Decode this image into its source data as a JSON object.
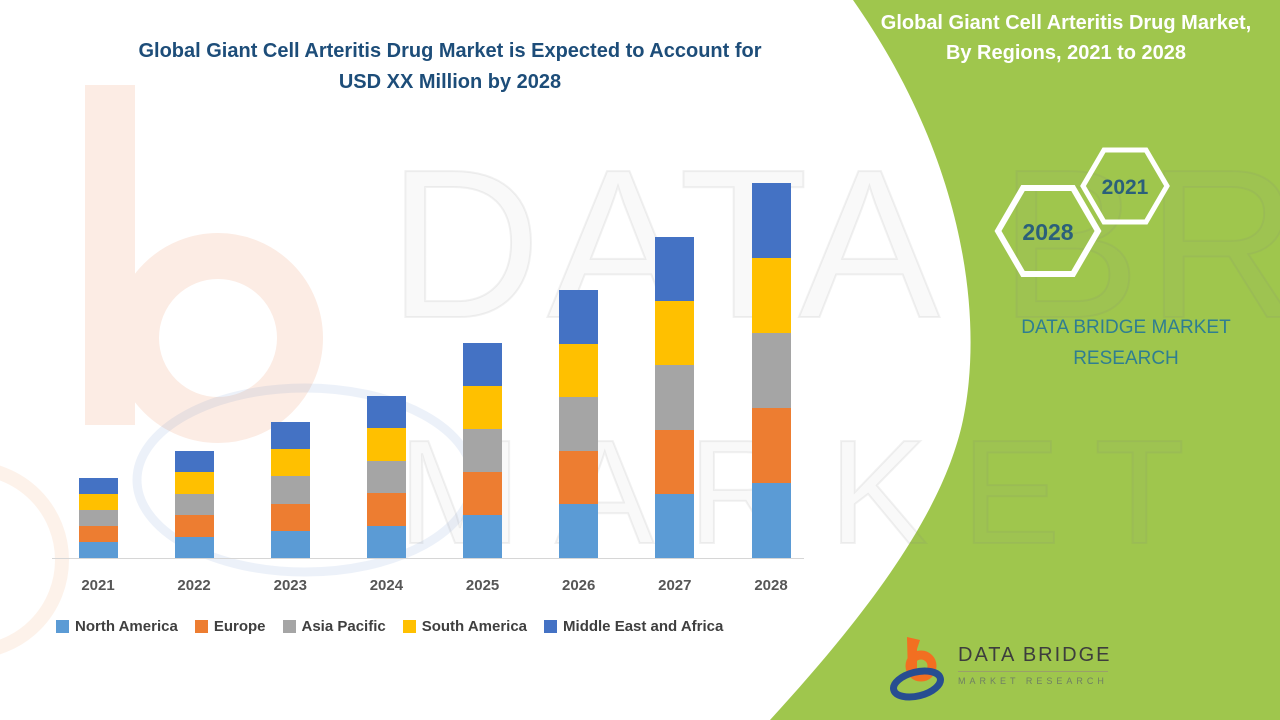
{
  "header": {
    "title_line1": "Global Giant Cell Arteritis Drug Market is Expected to Account for",
    "title_line2": "USD XX Million by 2028"
  },
  "side_panel": {
    "title": "Global Giant Cell Arteritis Drug Market, By Regions, 2021 to 2028",
    "hexagons": [
      {
        "label": "2021"
      },
      {
        "label": "2028"
      }
    ],
    "brand_line1": "DATA BRIDGE MARKET",
    "brand_line2": "RESEARCH",
    "background_color": "#9fc64d",
    "hexagon_stroke_color": "#ffffff",
    "year_text_color": "#2b607a"
  },
  "watermark": {
    "line1": "DATA BRIDGE",
    "line2": "MARKET RESEARCH"
  },
  "footer_logo": {
    "name": "DATA BRIDGE",
    "subtitle": "MARKET RESEARCH"
  },
  "chart_data": {
    "type": "bar",
    "stacked": true,
    "title": "Global Giant Cell Arteritis Drug Market is Expected to Account for USD XX Million by 2028",
    "xlabel": "",
    "ylabel": "",
    "y_axis": "hidden (no tick labels shown; values are relative units estimated from bar pixel heights)",
    "grid": false,
    "legend_position": "bottom",
    "categories": [
      "2021",
      "2022",
      "2023",
      "2024",
      "2025",
      "2026",
      "2027",
      "2028"
    ],
    "series": [
      {
        "name": "North America",
        "color": "#5B9BD5",
        "values": [
          16,
          21.4,
          27.2,
          32.4,
          43,
          53.6,
          64.2,
          75
        ]
      },
      {
        "name": "Europe",
        "color": "#ED7D31",
        "values": [
          16,
          21.4,
          27.2,
          32.4,
          43,
          53.6,
          64.2,
          75
        ]
      },
      {
        "name": "Asia Pacific",
        "color": "#A5A5A5",
        "values": [
          16,
          21.4,
          27.2,
          32.4,
          43,
          53.6,
          64.2,
          75
        ]
      },
      {
        "name": "South America",
        "color": "#FFC000",
        "values": [
          16,
          21.4,
          27.2,
          32.4,
          43,
          53.6,
          64.2,
          75
        ]
      },
      {
        "name": "Middle East and Africa",
        "color": "#4472C4",
        "values": [
          16,
          21.4,
          27.2,
          32.4,
          43,
          53.6,
          64.2,
          75
        ]
      }
    ],
    "stack_totals": [
      80,
      107,
      136,
      162,
      215,
      268,
      321,
      375
    ]
  }
}
